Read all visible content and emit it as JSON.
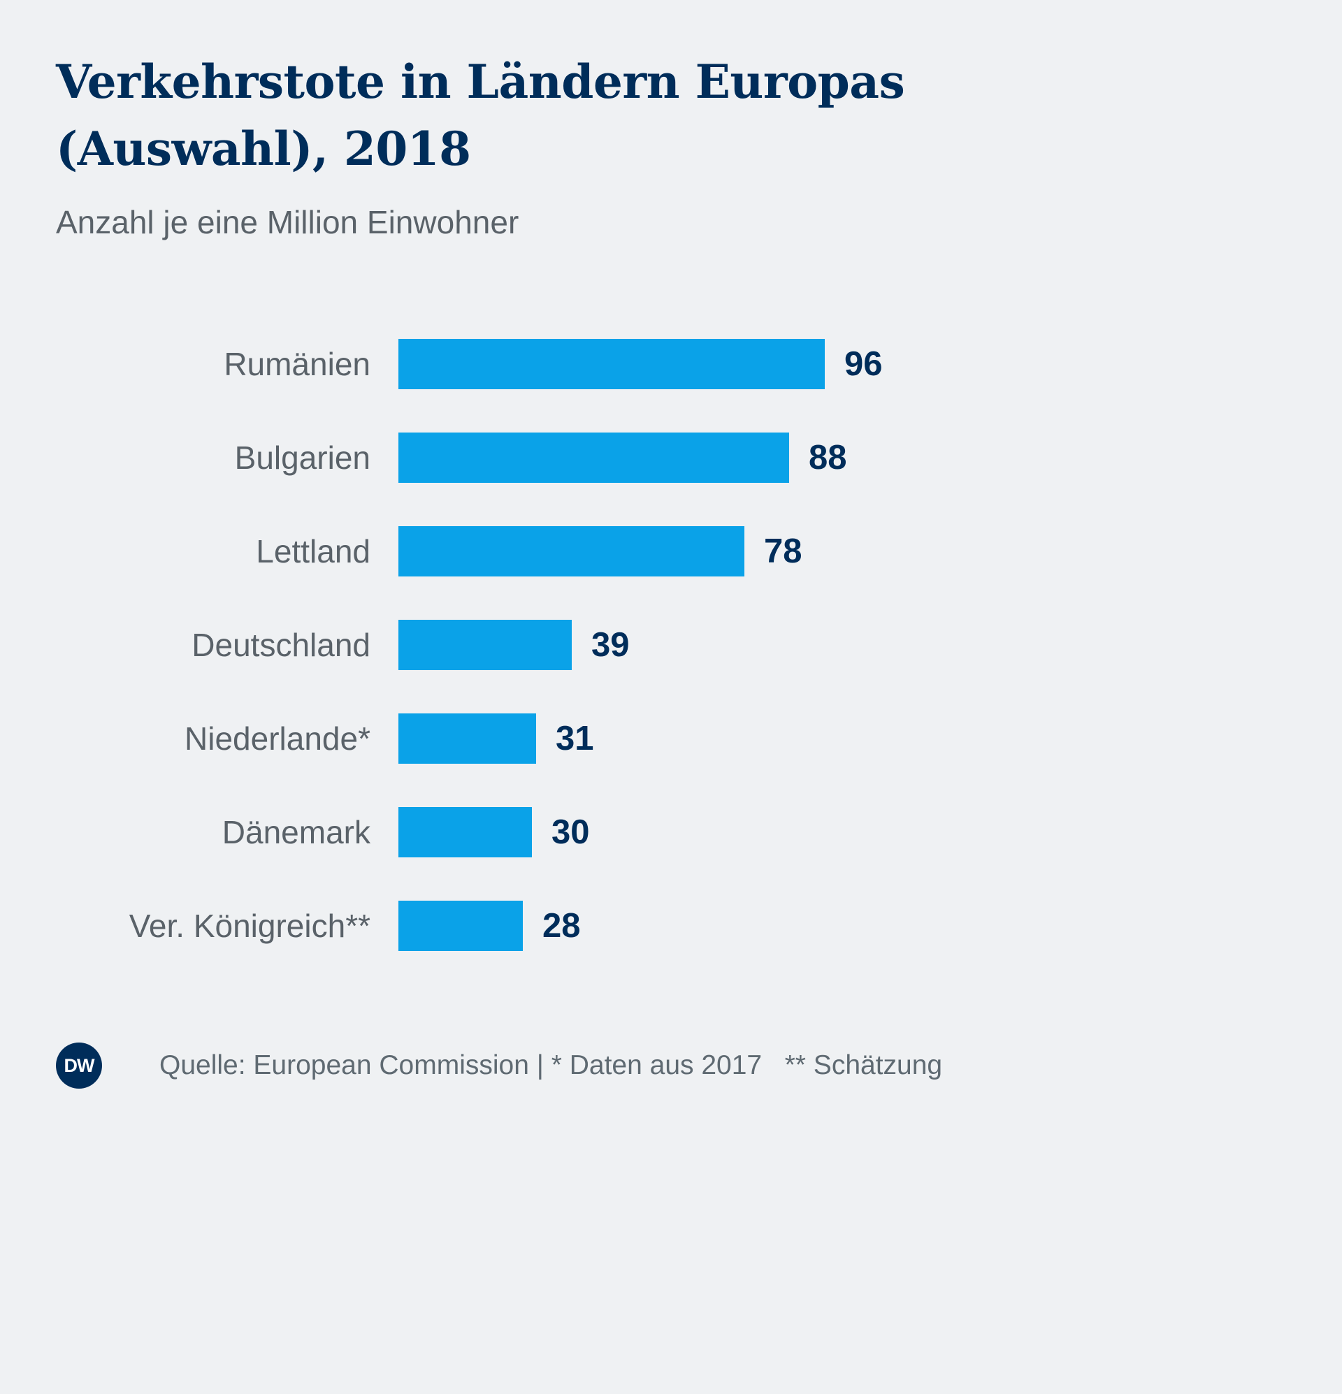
{
  "colors": {
    "background": "#eff1f3",
    "bar": "#0aa2e8",
    "title": "#002d5a",
    "value": "#002d5a",
    "label": "#5a6269",
    "footer_text": "#5f6a72",
    "logo_bg": "#002d5a"
  },
  "header": {
    "title_line1": "Verkehrstote in Ländern Europas",
    "title_line2": "(Auswahl), 2018",
    "subtitle": "Anzahl je eine Million Einwohner"
  },
  "chart_data": {
    "type": "bar",
    "orientation": "horizontal",
    "title": "Verkehrstote in Ländern Europas (Auswahl), 2018",
    "subtitle": "Anzahl je eine Million Einwohner",
    "categories": [
      "Rumänien",
      "Bulgarien",
      "Lettland",
      "Deutschland",
      "Niederlande*",
      "Dänemark",
      "Ver. Königreich**"
    ],
    "values": [
      96,
      88,
      78,
      39,
      31,
      30,
      28
    ],
    "xlim": [
      0,
      100
    ],
    "grid": false,
    "legend": false,
    "bar_color": "#0aa2e8",
    "value_labels": "end-of-bar"
  },
  "footer": {
    "logo_text": "DW",
    "source_text": "Quelle: European Commission | * Daten aus 2017   ** Schätzung"
  }
}
